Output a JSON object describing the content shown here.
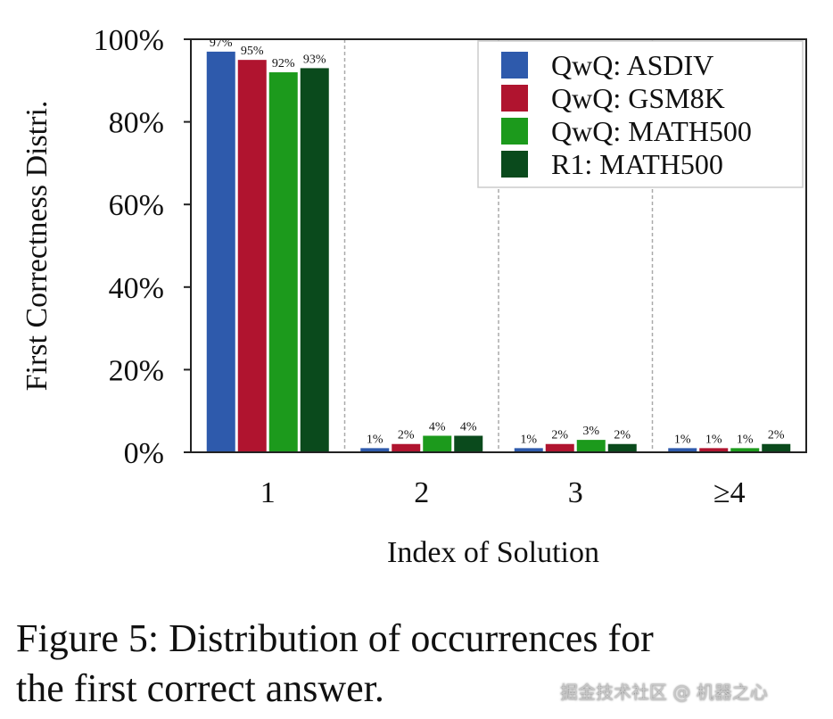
{
  "chart_data": {
    "type": "bar",
    "xlabel": "Index of Solution",
    "ylabel": "First Correctness Distri.",
    "categories": [
      "1",
      "2",
      "3",
      "≥4"
    ],
    "ylim": [
      0,
      100
    ],
    "yticks": [
      "0%",
      "20%",
      "40%",
      "60%",
      "80%",
      "100%"
    ],
    "ytick_values": [
      0,
      20,
      40,
      60,
      80,
      100
    ],
    "legend_position": "top-right",
    "grid": "vertical dashed separators between categories",
    "series": [
      {
        "name": "QwQ: ASDIV",
        "color": "#2e5aac",
        "values": [
          97,
          1,
          1,
          1
        ],
        "labels": [
          "97%",
          "1%",
          "1%",
          "1%"
        ]
      },
      {
        "name": "QwQ: GSM8K",
        "color": "#b0142f",
        "values": [
          95,
          2,
          2,
          1
        ],
        "labels": [
          "95%",
          "2%",
          "2%",
          "1%"
        ]
      },
      {
        "name": "QwQ: MATH500",
        "color": "#1c9a1c",
        "values": [
          92,
          4,
          3,
          1
        ],
        "labels": [
          "92%",
          "4%",
          "3%",
          "1%"
        ]
      },
      {
        "name": "R1: MATH500",
        "color": "#0a4a1c",
        "values": [
          93,
          4,
          2,
          2
        ],
        "labels": [
          "93%",
          "4%",
          "2%",
          "2%"
        ]
      }
    ]
  },
  "caption": {
    "line1": "Figure 5: Distribution of occurrences for",
    "line2": "the first correct answer."
  },
  "watermark": "掘金技术社区 @ 机器之心"
}
